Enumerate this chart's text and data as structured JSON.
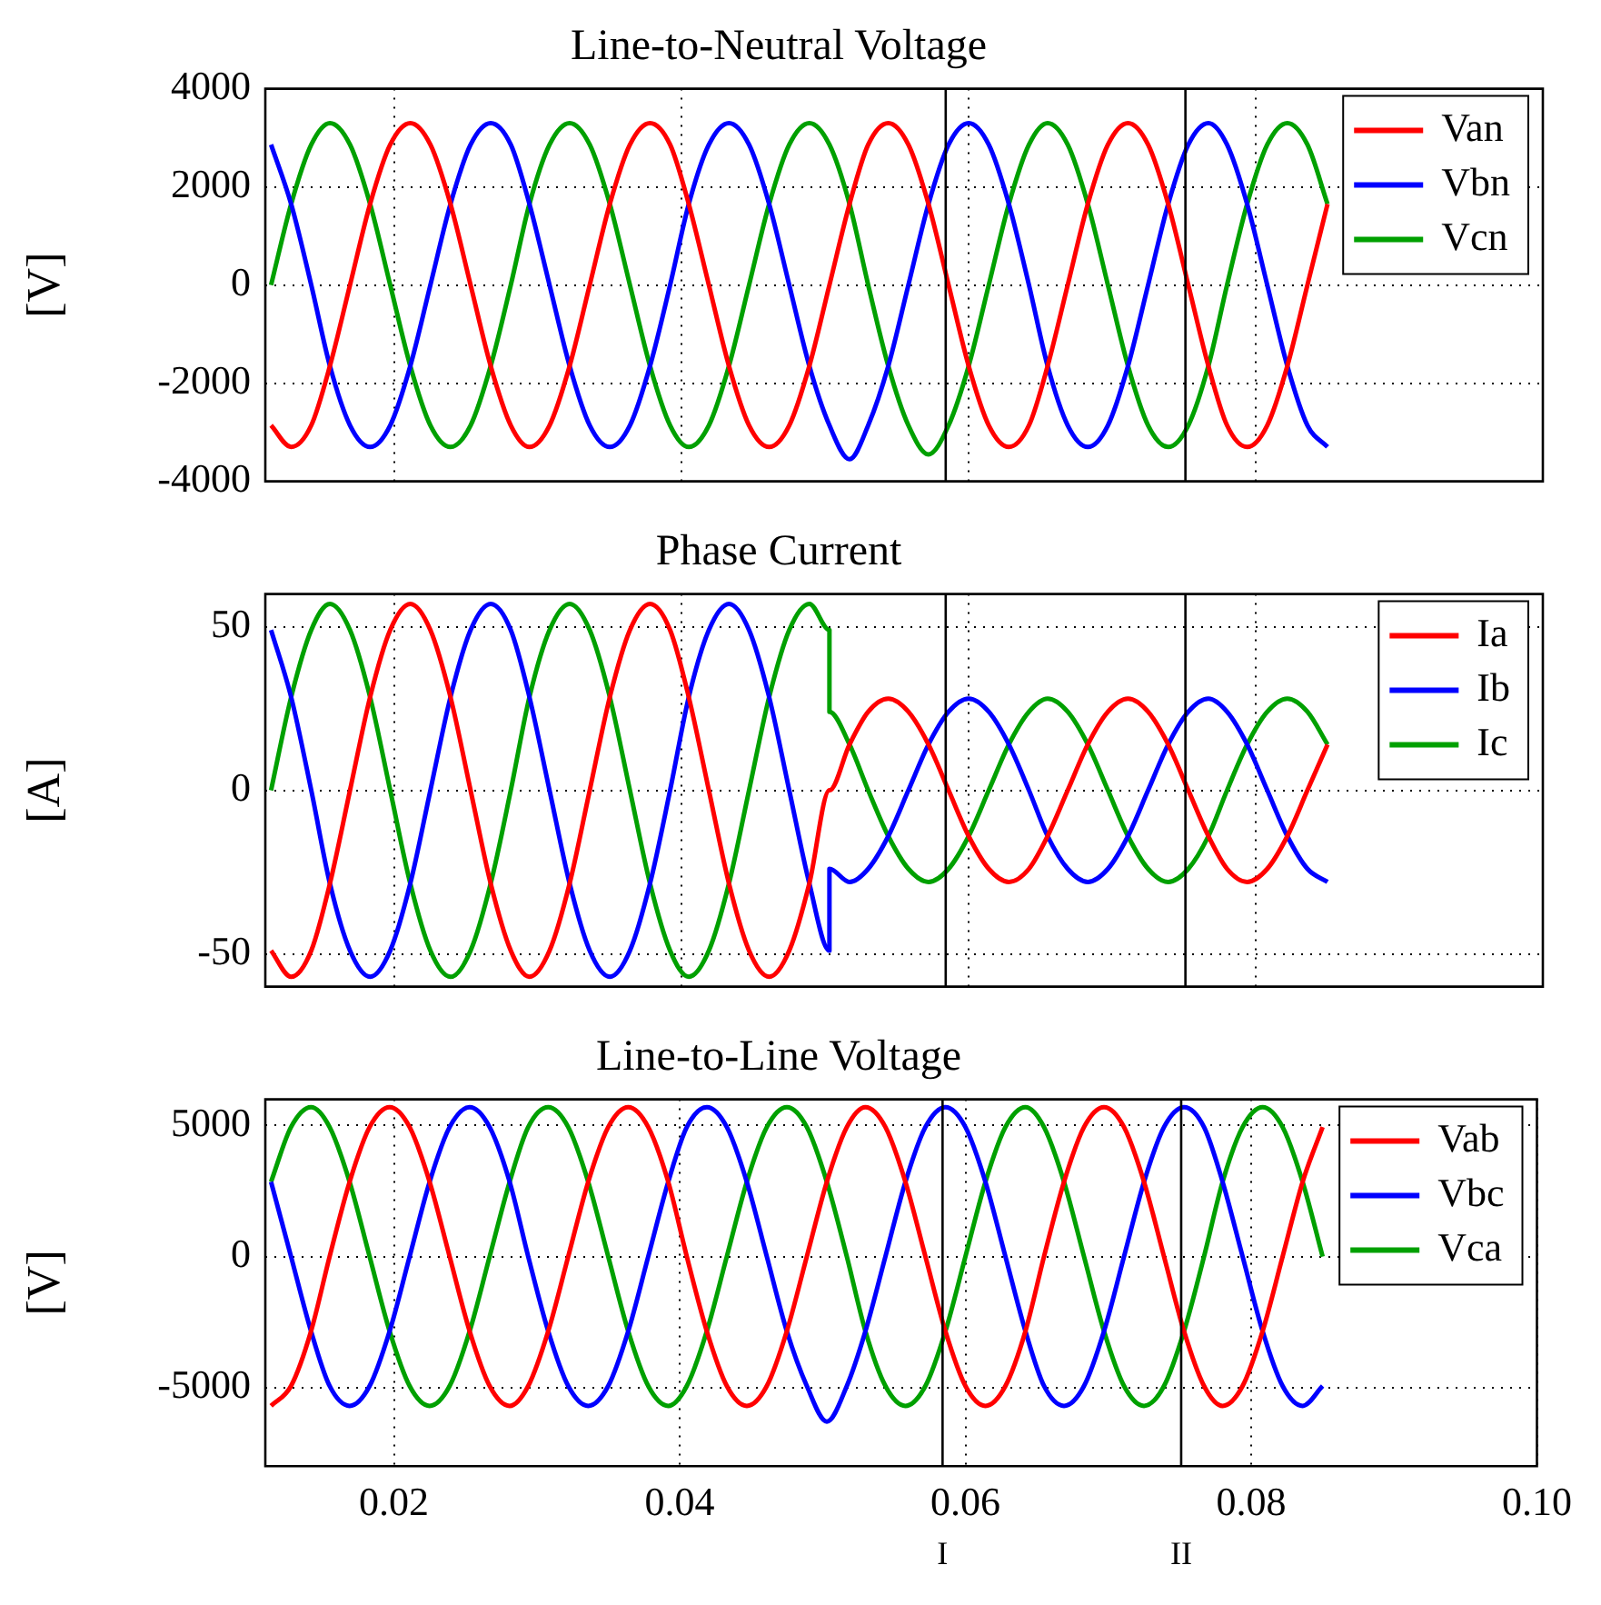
{
  "chart_data": [
    {
      "type": "line",
      "title": "Line-to-Neutral Voltage",
      "ylabel": "[V]",
      "xlim": [
        0.011,
        0.1
      ],
      "ylim": [
        -4000,
        4000
      ],
      "xticks": [
        0.02,
        0.04,
        0.06,
        0.08
      ],
      "yticks": [
        -4000,
        -2000,
        0,
        2000,
        4000
      ],
      "grid": true,
      "legend": "top right",
      "tick_labels": "y",
      "x": [
        0.0114,
        0.0128,
        0.0142,
        0.0155,
        0.0169,
        0.0183,
        0.0197,
        0.0211,
        0.0225,
        0.0239,
        0.0253,
        0.0267,
        0.0281,
        0.0294,
        0.0308,
        0.0322,
        0.0336,
        0.035,
        0.0364,
        0.0378,
        0.0392,
        0.0405,
        0.0419,
        0.0433,
        0.0447,
        0.0461,
        0.0475,
        0.0489,
        0.0503,
        0.0517,
        0.053,
        0.0544,
        0.0558,
        0.0572,
        0.0586,
        0.06,
        0.0614,
        0.0628,
        0.0642,
        0.0655,
        0.0669,
        0.0683,
        0.0697,
        0.0711,
        0.0725,
        0.0739,
        0.0753,
        0.0767,
        0.078,
        0.0794,
        0.0808,
        0.0822,
        0.0836,
        0.085
      ],
      "ref_lines": [
        {
          "axis": "x",
          "value": 0.0584,
          "color": "#000000"
        },
        {
          "axis": "x",
          "value": 0.0751,
          "color": "#000000"
        }
      ],
      "series": [
        {
          "name": "Van",
          "color": "#ff0000",
          "values": [
            -2860,
            -3300,
            -2860,
            -1650,
            0,
            1650,
            2860,
            3300,
            2860,
            1650,
            0,
            -1650,
            -2860,
            -3300,
            -2860,
            -1650,
            0,
            1650,
            2860,
            3300,
            2860,
            1650,
            0,
            -1650,
            -2860,
            -3300,
            -2860,
            -1650,
            0,
            1650,
            2860,
            3300,
            2860,
            1650,
            0,
            -1650,
            -2860,
            -3300,
            -2860,
            -1650,
            0,
            1650,
            2860,
            3300,
            2860,
            1650,
            0,
            -1650,
            -2860,
            -3300,
            -2860,
            -1650,
            0,
            1650
          ]
        },
        {
          "name": "Vbn",
          "color": "#0000ff",
          "values": [
            2860,
            1650,
            0,
            -1650,
            -2860,
            -3300,
            -2860,
            -1650,
            0,
            1650,
            2860,
            3300,
            2860,
            1650,
            0,
            -1650,
            -2860,
            -3300,
            -2860,
            -1650,
            0,
            1650,
            2860,
            3300,
            2860,
            1650,
            0,
            -1650,
            -2860,
            -3550,
            -2860,
            -1650,
            0,
            1650,
            2860,
            3300,
            2860,
            1650,
            0,
            -1650,
            -2860,
            -3300,
            -2860,
            -1650,
            0,
            1650,
            2860,
            3300,
            2860,
            1650,
            0,
            -1650,
            -2860,
            -3300
          ]
        },
        {
          "name": "Vcn",
          "color": "#00a000",
          "values": [
            0,
            1650,
            2860,
            3300,
            2860,
            1650,
            0,
            -1650,
            -2860,
            -3300,
            -2860,
            -1650,
            0,
            1650,
            2860,
            3300,
            2860,
            1650,
            0,
            -1650,
            -2860,
            -3300,
            -2860,
            -1650,
            0,
            1650,
            2860,
            3300,
            2860,
            1650,
            0,
            -1650,
            -2860,
            -3450,
            -2860,
            -1650,
            0,
            1650,
            2860,
            3300,
            2860,
            1650,
            0,
            -1650,
            -2860,
            -3300,
            -2860,
            -1650,
            0,
            1650,
            2860,
            3300,
            2860,
            1650
          ]
        }
      ]
    },
    {
      "type": "line",
      "title": "Phase Current",
      "ylabel": "[A]",
      "xlim": [
        0.011,
        0.1
      ],
      "ylim": [
        -60,
        60
      ],
      "xticks": [
        0.02,
        0.04,
        0.06,
        0.08
      ],
      "yticks": [
        -50,
        0,
        50
      ],
      "grid": true,
      "legend": "top right",
      "tick_labels": "y",
      "x": [
        0.0114,
        0.0128,
        0.0142,
        0.0155,
        0.0169,
        0.0183,
        0.0197,
        0.0211,
        0.0225,
        0.0239,
        0.0253,
        0.0267,
        0.0281,
        0.0294,
        0.0308,
        0.0322,
        0.0336,
        0.035,
        0.0364,
        0.0378,
        0.0392,
        0.0405,
        0.0419,
        0.0433,
        0.0447,
        0.0461,
        0.0475,
        0.0489,
        0.0503,
        0.0503,
        0.0517,
        0.053,
        0.0544,
        0.0558,
        0.0572,
        0.0586,
        0.06,
        0.0614,
        0.0628,
        0.0642,
        0.0655,
        0.0669,
        0.0683,
        0.0697,
        0.0711,
        0.0725,
        0.0739,
        0.0753,
        0.0767,
        0.078,
        0.0794,
        0.0808,
        0.0822,
        0.0836,
        0.085
      ],
      "ref_lines": [
        {
          "axis": "x",
          "value": 0.0584,
          "color": "#000000"
        },
        {
          "axis": "x",
          "value": 0.0751,
          "color": "#000000"
        }
      ],
      "series": [
        {
          "name": "Ia",
          "color": "#ff0000",
          "values": [
            -49,
            -57,
            -49,
            -28.5,
            0,
            28.5,
            49,
            57,
            49,
            28.5,
            0,
            -28.5,
            -49,
            -57,
            -49,
            -28.5,
            0,
            28.5,
            49,
            57,
            49,
            28.5,
            0,
            -28.5,
            -49,
            -57,
            -49,
            -28.5,
            0,
            0,
            14,
            24,
            28,
            24,
            14,
            0,
            -14,
            -24,
            -28,
            -24,
            -14,
            0,
            14,
            24,
            28,
            24,
            14,
            0,
            -14,
            -24,
            -28,
            -24,
            -14,
            0,
            14
          ]
        },
        {
          "name": "Ib",
          "color": "#0000ff",
          "values": [
            49,
            28.5,
            0,
            -28.5,
            -49,
            -57,
            -49,
            -28.5,
            0,
            28.5,
            49,
            57,
            49,
            28.5,
            0,
            -28.5,
            -49,
            -57,
            -49,
            -28.5,
            0,
            28.5,
            49,
            57,
            49,
            28.5,
            0,
            -28.5,
            -49,
            -24,
            -28,
            -24,
            -14,
            0,
            14,
            24,
            28,
            24,
            14,
            0,
            -14,
            -24,
            -28,
            -24,
            -14,
            0,
            14,
            24,
            28,
            24,
            14,
            0,
            -14,
            -24,
            -28
          ]
        },
        {
          "name": "Ic",
          "color": "#00a000",
          "values": [
            0,
            28.5,
            49,
            57,
            49,
            28.5,
            0,
            -28.5,
            -49,
            -57,
            -49,
            -28.5,
            0,
            28.5,
            49,
            57,
            49,
            28.5,
            0,
            -28.5,
            -49,
            -57,
            -49,
            -28.5,
            0,
            28.5,
            49,
            57,
            49,
            24,
            14,
            0,
            -14,
            -24,
            -28,
            -24,
            -14,
            0,
            14,
            24,
            28,
            24,
            14,
            0,
            -14,
            -24,
            -28,
            -24,
            -14,
            0,
            14,
            24,
            28,
            24,
            14
          ]
        }
      ]
    },
    {
      "type": "line",
      "title": "Line-to-Line Voltage",
      "ylabel": "[V]",
      "xlim": [
        0.011,
        0.1
      ],
      "ylim": [
        -8000,
        6000
      ],
      "xticks": [
        0.02,
        0.04,
        0.06,
        0.08,
        {
          "value": 0.1,
          "label": "0.10"
        }
      ],
      "yticks": [
        -5000,
        0,
        5000
      ],
      "grid": true,
      "legend": "top right",
      "x": [
        0.0114,
        0.0128,
        0.0142,
        0.0155,
        0.0169,
        0.0183,
        0.0197,
        0.0211,
        0.0225,
        0.0239,
        0.0253,
        0.0267,
        0.0281,
        0.0294,
        0.0308,
        0.0322,
        0.0336,
        0.035,
        0.0364,
        0.0378,
        0.0392,
        0.0405,
        0.0419,
        0.0433,
        0.0447,
        0.0461,
        0.0475,
        0.0489,
        0.0503,
        0.0517,
        0.053,
        0.0544,
        0.0558,
        0.0572,
        0.0586,
        0.06,
        0.0614,
        0.0628,
        0.0642,
        0.0655,
        0.0669,
        0.0683,
        0.0697,
        0.0711,
        0.0725,
        0.0739,
        0.0753,
        0.0767,
        0.078,
        0.0794,
        0.0808,
        0.0822,
        0.0836,
        0.085
      ],
      "ref_lines": [
        {
          "axis": "x",
          "value": 0.0584,
          "label": "I",
          "color": "#000000"
        },
        {
          "axis": "x",
          "value": 0.0751,
          "label": "II",
          "color": "#000000"
        }
      ],
      "series": [
        {
          "name": "Vab",
          "color": "#ff0000",
          "values": [
            -5700,
            -4940,
            -2850,
            0,
            2850,
            4940,
            5700,
            4940,
            2850,
            0,
            -2850,
            -4940,
            -5700,
            -4940,
            -2850,
            0,
            2850,
            4940,
            5700,
            4940,
            2850,
            0,
            -2850,
            -4940,
            -5700,
            -4940,
            -2850,
            0,
            2850,
            4940,
            5700,
            4940,
            2850,
            0,
            -2850,
            -4940,
            -5700,
            -4940,
            -2850,
            0,
            2850,
            4940,
            5700,
            4940,
            2850,
            0,
            -2850,
            -4940,
            -5700,
            -4940,
            -2850,
            0,
            2850,
            4940
          ]
        },
        {
          "name": "Vbc",
          "color": "#0000ff",
          "values": [
            2850,
            0,
            -2850,
            -4940,
            -5700,
            -4940,
            -2850,
            0,
            2850,
            4940,
            5700,
            4940,
            2850,
            0,
            -2850,
            -4940,
            -5700,
            -4940,
            -2850,
            0,
            2850,
            4940,
            5700,
            4940,
            2850,
            0,
            -2850,
            -4940,
            -6300,
            -4940,
            -2850,
            0,
            2850,
            4940,
            5700,
            4940,
            2850,
            0,
            -2850,
            -4940,
            -5700,
            -4940,
            -2850,
            0,
            2850,
            4940,
            5700,
            4940,
            2850,
            0,
            -2850,
            -4940,
            -5700,
            -4940
          ]
        },
        {
          "name": "Vca",
          "color": "#00a000",
          "values": [
            2850,
            4940,
            5700,
            4940,
            2850,
            0,
            -2850,
            -4940,
            -5700,
            -4940,
            -2850,
            0,
            2850,
            4940,
            5700,
            4940,
            2850,
            0,
            -2850,
            -4940,
            -5700,
            -4940,
            -2850,
            0,
            2850,
            4940,
            5700,
            4940,
            2850,
            0,
            -2850,
            -4940,
            -5700,
            -4940,
            -2850,
            0,
            2850,
            4940,
            5700,
            4940,
            2850,
            0,
            -2850,
            -4940,
            -5700,
            -4940,
            -2850,
            0,
            2850,
            4940,
            5700,
            4940,
            2850,
            0
          ]
        }
      ]
    }
  ]
}
